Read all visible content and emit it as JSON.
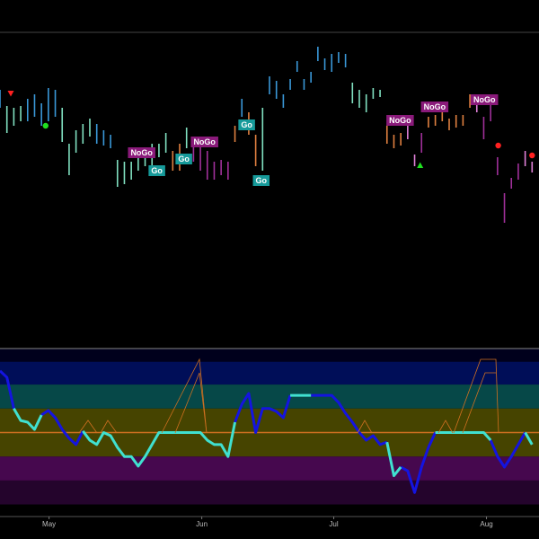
{
  "chart_data": [
    {
      "type": "range-bar",
      "xlim": [
        0,
        78
      ],
      "ylim": [
        0,
        354
      ],
      "series": [
        {
          "color": "#80e0c0",
          "x": [
            1,
            2,
            3,
            9,
            10,
            11,
            12,
            13,
            17,
            18,
            19,
            20,
            21,
            22,
            23,
            24,
            27,
            38,
            51,
            52,
            53,
            54,
            55
          ],
          "high": [
            272,
            270,
            272,
            270,
            230,
            245,
            252,
            258,
            212,
            210,
            210,
            220,
            222,
            230,
            230,
            242,
            248,
            270,
            298,
            290,
            285,
            292,
            290
          ],
          "low": [
            242,
            250,
            255,
            232,
            195,
            220,
            230,
            238,
            182,
            185,
            190,
            200,
            205,
            200,
            215,
            220,
            225,
            200,
            275,
            270,
            265,
            280,
            282
          ]
        },
        {
          "color": "#3a98d8",
          "x": [
            0,
            4,
            5,
            6,
            7,
            8,
            14,
            15,
            16,
            35,
            39,
            40,
            41,
            42,
            43,
            44,
            45,
            46,
            47,
            48,
            49,
            50
          ],
          "high": [
            290,
            280,
            285,
            275,
            292,
            290,
            252,
            245,
            240,
            280,
            305,
            300,
            285,
            302,
            322,
            302,
            310,
            338,
            325,
            330,
            332,
            330
          ],
          "low": [
            270,
            255,
            260,
            250,
            255,
            260,
            230,
            228,
            225,
            260,
            285,
            280,
            270,
            290,
            310,
            290,
            298,
            322,
            312,
            310,
            320,
            315
          ]
        },
        {
          "color": "#e08040",
          "x": [
            25,
            26,
            34,
            36,
            37,
            56,
            57,
            58,
            62,
            63,
            64,
            65,
            66,
            67,
            68
          ],
          "high": [
            222,
            230,
            250,
            265,
            240,
            250,
            240,
            242,
            260,
            262,
            265,
            258,
            262,
            262,
            285
          ],
          "low": [
            200,
            200,
            232,
            240,
            205,
            230,
            225,
            228,
            248,
            250,
            255,
            245,
            248,
            250,
            270
          ]
        },
        {
          "color": "#a0309a",
          "x": [
            28,
            29,
            30,
            31,
            32,
            33,
            61,
            70,
            71,
            72,
            73,
            74,
            75
          ],
          "high": [
            232,
            235,
            222,
            210,
            212,
            210,
            242,
            260,
            275,
            215,
            175,
            192,
            208
          ],
          "low": [
            210,
            200,
            190,
            190,
            195,
            190,
            220,
            235,
            255,
            195,
            142,
            180,
            190
          ]
        },
        {
          "color": "#e080d8",
          "x": [
            59,
            60,
            69,
            76,
            77
          ],
          "high": [
            250,
            218,
            282,
            222,
            210
          ],
          "low": [
            235,
            205,
            265,
            205,
            198
          ]
        }
      ],
      "annotations": [
        {
          "text": "NoGo",
          "x": 20.5,
          "y": 220,
          "color": "#8a1a7a"
        },
        {
          "text": "Go",
          "x": 22.7,
          "y": 200,
          "color": "#169a9a"
        },
        {
          "text": "Go",
          "x": 26.6,
          "y": 213,
          "color": "#169a9a"
        },
        {
          "text": "NoGo",
          "x": 29.6,
          "y": 232,
          "color": "#8a1a7a"
        },
        {
          "text": "Go",
          "x": 35.7,
          "y": 251,
          "color": "#169a9a"
        },
        {
          "text": "Go",
          "x": 37.8,
          "y": 189,
          "color": "#169a9a"
        },
        {
          "text": "NoGo",
          "x": 57.9,
          "y": 256,
          "color": "#8a1a7a"
        },
        {
          "text": "NoGo",
          "x": 62.9,
          "y": 271,
          "color": "#8a1a7a"
        },
        {
          "text": "NoGo",
          "x": 70.1,
          "y": 279,
          "color": "#8a1a7a"
        }
      ],
      "markers": [
        {
          "shape": "triangle-down",
          "color": "#ff2020",
          "x": 1.56,
          "y": 286
        },
        {
          "shape": "dot",
          "color": "#20e020",
          "x": 6.6,
          "y": 250
        },
        {
          "shape": "triangle-up",
          "color": "#20e020",
          "x": 60.8,
          "y": 206
        },
        {
          "shape": "dot",
          "color": "#ff2020",
          "x": 72.1,
          "y": 228
        },
        {
          "shape": "dot",
          "color": "#ff2020",
          "x": 77,
          "y": 217
        }
      ]
    },
    {
      "type": "line",
      "xlim": [
        0,
        78
      ],
      "ylim": [
        -3.5,
        3.5
      ],
      "xticks": [
        {
          "value": 7.1,
          "label": "May"
        },
        {
          "value": 29.2,
          "label": "Jun"
        },
        {
          "value": 48.3,
          "label": "Jul"
        },
        {
          "value": 70.4,
          "label": "Aug"
        }
      ],
      "bands": [
        {
          "from": 2.95,
          "to": 3.5,
          "color": "#00001c"
        },
        {
          "from": 2,
          "to": 2.95,
          "color": "#000e58"
        },
        {
          "from": 1,
          "to": 2,
          "color": "#064848"
        },
        {
          "from": -1,
          "to": 1,
          "color": "#464400"
        },
        {
          "from": -2,
          "to": -1,
          "color": "#46084e"
        },
        {
          "from": -3,
          "to": -2,
          "color": "#24042c"
        },
        {
          "from": -3.5,
          "to": -3,
          "color": "#000000"
        }
      ],
      "zero_line_color": "#d07020",
      "x": [
        0,
        1,
        2,
        3,
        4,
        5,
        6,
        7,
        8,
        9,
        10,
        11,
        12,
        13,
        14,
        15,
        16,
        17,
        18,
        19,
        20,
        21,
        22,
        23,
        24,
        25,
        26,
        27,
        28,
        29,
        30,
        31,
        32,
        33,
        34,
        35,
        36,
        37,
        38,
        39,
        40,
        41,
        42,
        43,
        44,
        45,
        46,
        47,
        48,
        49,
        50,
        51,
        52,
        53,
        54,
        55,
        56,
        57,
        58,
        59,
        60,
        61,
        62,
        63,
        64,
        65,
        66,
        67,
        68,
        69,
        70,
        71,
        72,
        73,
        74,
        75,
        76,
        77
      ],
      "series": [
        {
          "color": "#1414e0",
          "values": [
            2.57,
            2.3,
            1.0,
            null,
            null,
            null,
            0.73,
            0.92,
            0.62,
            0.13,
            -0.24,
            -0.5,
            0.06,
            null,
            null,
            null,
            null,
            null,
            null,
            null,
            null,
            null,
            null,
            null,
            null,
            null,
            null,
            null,
            null,
            null,
            null,
            null,
            null,
            null,
            0.43,
            1.18,
            1.63,
            0,
            1.0,
            1.0,
            0.88,
            0.62,
            1.55,
            null,
            null,
            1.55,
            1.55,
            1.55,
            1.55,
            1.25,
            0.8,
            0.43,
            0,
            -0.32,
            -0.13,
            -0.5,
            -0.4,
            null,
            -1.44,
            -1.6,
            -2.5,
            -1.44,
            -0.62,
            0,
            null,
            null,
            null,
            null,
            null,
            null,
            null,
            -0.32,
            -1.0,
            -1.44,
            -1.0,
            -0.5,
            0,
            null
          ]
        },
        {
          "color": "#40e0d0",
          "values": [
            null,
            null,
            1.0,
            0.5,
            0.43,
            0.13,
            0.73,
            null,
            null,
            null,
            null,
            null,
            0.06,
            -0.32,
            -0.5,
            0,
            -0.13,
            -0.62,
            -1.0,
            -1.0,
            -1.4,
            -1.0,
            -0.5,
            0,
            0,
            0,
            0,
            0,
            0,
            0,
            -0.32,
            -0.5,
            -0.5,
            -1.0,
            0.43,
            null,
            null,
            null,
            null,
            null,
            null,
            null,
            1.55,
            1.55,
            1.55,
            1.55,
            null,
            null,
            null,
            null,
            null,
            null,
            null,
            null,
            null,
            null,
            -0.4,
            -1.8,
            -1.44,
            null,
            null,
            null,
            null,
            0,
            0,
            0,
            0,
            0,
            0,
            0,
            0,
            -0.32,
            null,
            null,
            null,
            null,
            0,
            -0.5
          ]
        }
      ]
    }
  ]
}
